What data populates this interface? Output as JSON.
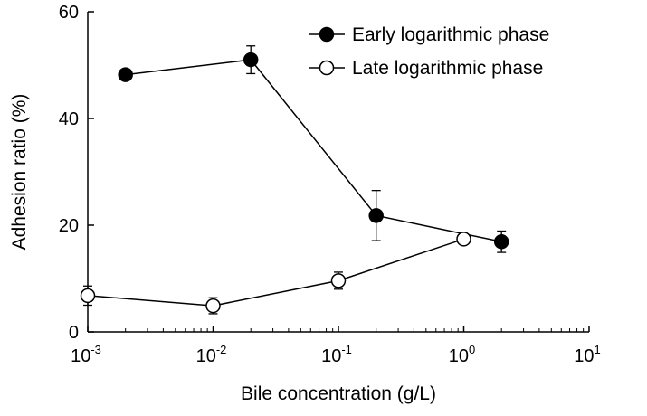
{
  "chart_data": {
    "type": "scatter",
    "title": "",
    "xlabel": "Bile concentration (g/L)",
    "ylabel": "Adhesion ratio (%)",
    "x_scale": "log",
    "xlim": [
      0.001,
      10
    ],
    "ylim": [
      0,
      60
    ],
    "x_ticks": [
      {
        "base": "10",
        "exp": "-3",
        "value": 0.001
      },
      {
        "base": "10",
        "exp": "-2",
        "value": 0.01
      },
      {
        "base": "10",
        "exp": "-1",
        "value": 0.1
      },
      {
        "base": "10",
        "exp": "0",
        "value": 1
      },
      {
        "base": "10",
        "exp": "1",
        "value": 10
      }
    ],
    "y_ticks": [
      {
        "label": "0",
        "value": 0
      },
      {
        "label": "20",
        "value": 20
      },
      {
        "label": "40",
        "value": 40
      },
      {
        "label": "60",
        "value": 60
      }
    ],
    "grid": false,
    "legend_position": "top-right",
    "series": [
      {
        "name": "Early logarithmic phase",
        "marker": "filled-circle",
        "color": "#000000",
        "x": [
          0.002,
          0.02,
          0.2,
          2
        ],
        "y": [
          48.2,
          51.0,
          21.8,
          16.9
        ],
        "error": [
          0.5,
          2.6,
          4.7,
          2.0
        ]
      },
      {
        "name": "Late logarithmic phase",
        "marker": "open-circle",
        "color": "#000000",
        "x": [
          0.001,
          0.01,
          0.1,
          1
        ],
        "y": [
          6.8,
          4.9,
          9.6,
          17.4
        ],
        "error": [
          1.8,
          1.5,
          1.6,
          0.7
        ]
      }
    ]
  }
}
